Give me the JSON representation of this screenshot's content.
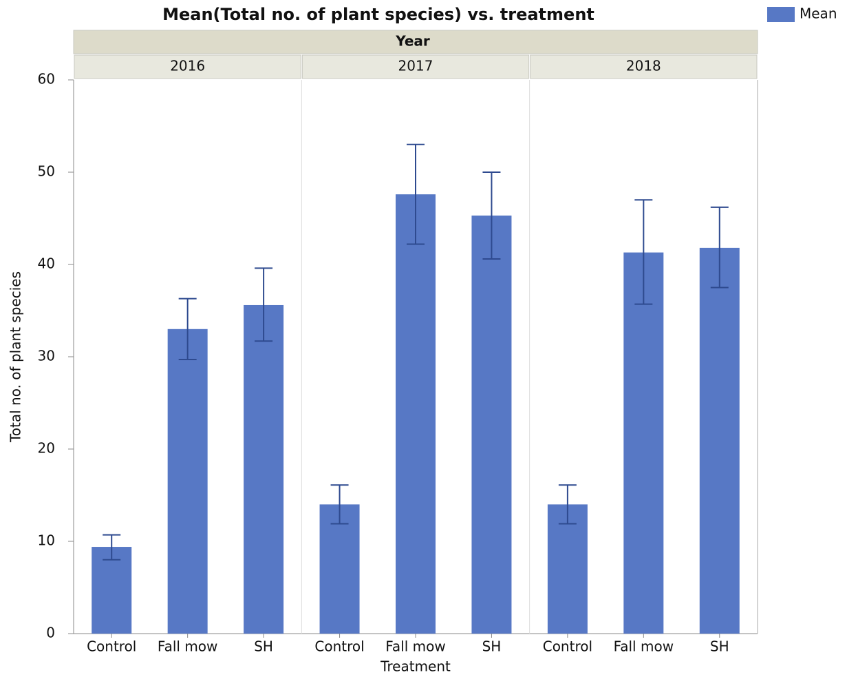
{
  "chart_data": {
    "type": "bar",
    "title": "Mean(Total no. of  plant species) vs. treatment",
    "legend": {
      "name": "Mean",
      "color": "#5778c5",
      "corner": "top-right"
    },
    "facet_label": "Year",
    "x_label": "Treatment",
    "y_label": "Total no. of plant species",
    "ylim": [
      0,
      60
    ],
    "yticks": [
      0,
      10,
      20,
      30,
      40,
      50,
      60
    ],
    "panels": [
      {
        "label": "2016",
        "categories": [
          "Control",
          "Fall mow",
          "SH"
        ],
        "values": [
          9.4,
          33.0,
          35.6
        ],
        "error_low": [
          8.0,
          29.7,
          31.7
        ],
        "error_high": [
          10.7,
          36.3,
          39.6
        ]
      },
      {
        "label": "2017",
        "categories": [
          "Control",
          "Fall mow",
          "SH"
        ],
        "values": [
          14.0,
          47.6,
          45.3
        ],
        "error_low": [
          11.9,
          42.2,
          40.6
        ],
        "error_high": [
          16.1,
          53.0,
          50.0
        ]
      },
      {
        "label": "2018",
        "categories": [
          "Control",
          "Fall mow",
          "SH"
        ],
        "values": [
          14.0,
          41.3,
          41.8
        ],
        "error_low": [
          11.9,
          35.7,
          37.5
        ],
        "error_high": [
          16.1,
          47.0,
          46.2
        ]
      }
    ]
  }
}
